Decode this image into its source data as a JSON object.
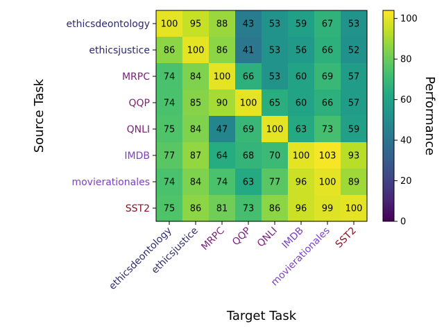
{
  "chart_data": {
    "type": "heatmap",
    "title": "",
    "xlabel": "Target Task",
    "ylabel": "Source Task",
    "colorbar_label": "Performance",
    "colorbar_ticks": [
      0,
      20,
      40,
      60,
      80,
      100
    ],
    "value_range": [
      0,
      104
    ],
    "rows": [
      "ethicsdeontology",
      "ethicsjustice",
      "MRPC",
      "QQP",
      "QNLI",
      "IMDB",
      "movierationales",
      "SST2"
    ],
    "cols": [
      "ethicsdeontology",
      "ethicsjustice",
      "MRPC",
      "QQP",
      "QNLI",
      "IMDB",
      "movierationales",
      "SST2"
    ],
    "task_colors": {
      "ethicsdeontology": "#2b2a6e",
      "ethicsjustice": "#2b2a6e",
      "MRPC": "#7b1f7a",
      "QQP": "#7b1f7a",
      "QNLI": "#7b1f7a",
      "IMDB": "#7a3fc8",
      "movierationales": "#7a3fc8",
      "SST2": "#8a1020"
    },
    "values": [
      [
        100,
        95,
        88,
        43,
        53,
        59,
        67,
        53
      ],
      [
        86,
        100,
        86,
        41,
        53,
        56,
        66,
        52
      ],
      [
        74,
        84,
        100,
        66,
        53,
        60,
        69,
        57
      ],
      [
        74,
        85,
        90,
        100,
        65,
        60,
        66,
        57
      ],
      [
        75,
        84,
        47,
        69,
        100,
        63,
        73,
        59
      ],
      [
        77,
        87,
        64,
        68,
        70,
        100,
        103,
        93
      ],
      [
        74,
        84,
        74,
        63,
        77,
        96,
        100,
        89
      ],
      [
        75,
        86,
        81,
        73,
        86,
        96,
        99,
        100
      ]
    ]
  }
}
